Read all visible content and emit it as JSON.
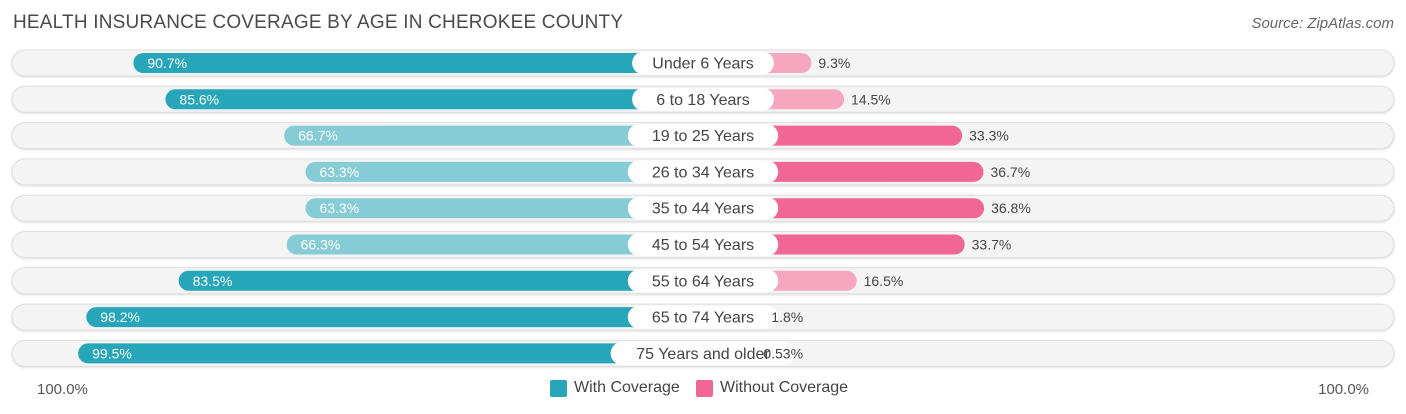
{
  "header": {
    "title": "HEALTH INSURANCE COVERAGE BY AGE IN CHEROKEE COUNTY",
    "source": "Source: ZipAtlas.com"
  },
  "colors": {
    "with_strong": "#26a6b8",
    "with_light": "#86ccd6",
    "without_strong": "#f06795",
    "without_light": "#f7a6c0",
    "track": "#efefef",
    "label_bg": "#ffffff"
  },
  "chart_data": {
    "type": "bar",
    "orientation": "horizontal-diverging",
    "title": "HEALTH INSURANCE COVERAGE BY AGE IN CHEROKEE COUNTY",
    "categories": [
      "Under 6 Years",
      "6 to 18 Years",
      "19 to 25 Years",
      "26 to 34 Years",
      "35 to 44 Years",
      "45 to 54 Years",
      "55 to 64 Years",
      "65 to 74 Years",
      "75 Years and older"
    ],
    "series": [
      {
        "name": "With Coverage",
        "values": [
          90.7,
          85.6,
          66.7,
          63.3,
          63.3,
          66.3,
          83.5,
          98.2,
          99.5
        ],
        "labels": [
          "90.7%",
          "85.6%",
          "66.7%",
          "63.3%",
          "63.3%",
          "66.3%",
          "83.5%",
          "98.2%",
          "99.5%"
        ]
      },
      {
        "name": "Without Coverage",
        "values": [
          9.3,
          14.5,
          33.3,
          36.7,
          36.8,
          33.7,
          16.5,
          1.8,
          0.53
        ],
        "labels": [
          "9.3%",
          "14.5%",
          "33.3%",
          "36.7%",
          "36.8%",
          "33.7%",
          "16.5%",
          "1.8%",
          "0.53%"
        ]
      }
    ],
    "xlim": [
      0,
      100
    ],
    "axis_left_label": "100.0%",
    "axis_right_label": "100.0%",
    "legend": [
      "With Coverage",
      "Without Coverage"
    ],
    "legend_position": "bottom-center"
  }
}
